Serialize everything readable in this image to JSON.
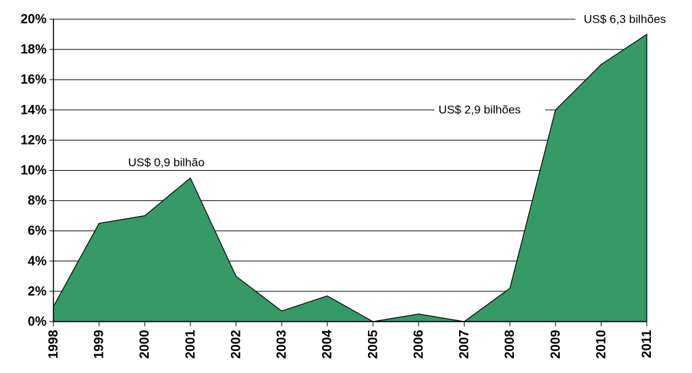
{
  "chart_data": {
    "type": "area",
    "categories": [
      "1998",
      "1999",
      "2000",
      "2001",
      "2002",
      "2003",
      "2004",
      "2005",
      "2006",
      "2007",
      "2008",
      "2009",
      "2010",
      "2011"
    ],
    "values": [
      1.0,
      6.5,
      7.0,
      9.5,
      3.0,
      0.7,
      1.7,
      0,
      0.5,
      0,
      2.2,
      14,
      17,
      19
    ],
    "color": "#359a66",
    "ylim": [
      0,
      20
    ],
    "yticks": [
      {
        "value": 0,
        "label": "0%"
      },
      {
        "value": 2,
        "label": "2%"
      },
      {
        "value": 4,
        "label": "4%"
      },
      {
        "value": 6,
        "label": "6%"
      },
      {
        "value": 8,
        "label": "8%"
      },
      {
        "value": 10,
        "label": "10%"
      },
      {
        "value": 12,
        "label": "12%"
      },
      {
        "value": 14,
        "label": "14%"
      },
      {
        "value": 16,
        "label": "16%"
      },
      {
        "value": 18,
        "label": "18%"
      },
      {
        "value": 20,
        "label": "20%"
      }
    ],
    "grid": true,
    "annotations": [
      "US$ 0,9 bilhão",
      "US$ 2,9 bilhões",
      "US$ 6,3 bilhões"
    ]
  }
}
